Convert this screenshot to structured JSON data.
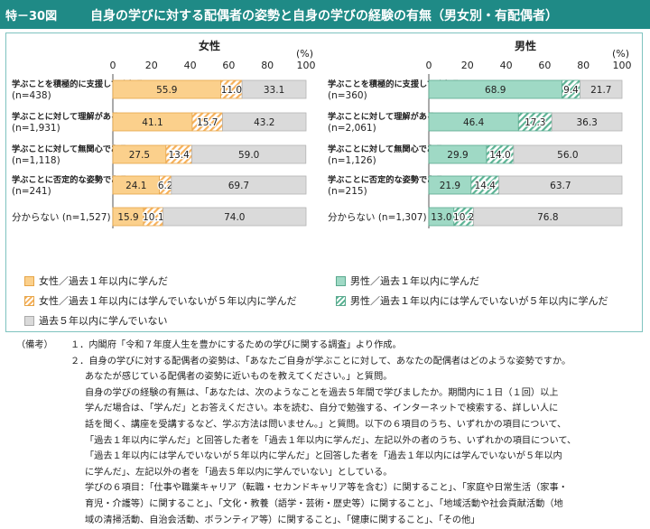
{
  "header": {
    "figure_label": "特－30図",
    "title": "自身の学びに対する配偶者の姿勢と自身の学びの経験の有無（男女別・有配偶者）"
  },
  "chart_data": [
    {
      "type": "bar",
      "orientation": "horizontal",
      "stacked": true,
      "title": "女性",
      "unit_label": "(%)",
      "xlim": [
        0,
        100
      ],
      "ticks": [
        "0",
        "20",
        "40",
        "60",
        "80",
        "100"
      ],
      "categories": [
        [
          "学ぶことを積極的に支援してくれる",
          "(n=438)"
        ],
        [
          "学ぶことに対して理解がある",
          "(n=1,931)"
        ],
        [
          "学ぶことに対して無関心である",
          "(n=1,118)"
        ],
        [
          "学ぶことに否定的な姿勢である",
          "(n=241)"
        ],
        [
          "分からない (n=1,527)"
        ]
      ],
      "series": [
        {
          "name": "女性／過去１年以内に学んだ",
          "values": [
            55.9,
            41.1,
            27.5,
            24.1,
            15.9
          ],
          "color": "#fbd08c",
          "pattern": "solid"
        },
        {
          "name": "女性／過去１年以内には学んでいないが５年以内に学んだ",
          "values": [
            11.0,
            15.7,
            13.4,
            6.2,
            10.1
          ],
          "color": "#f6b15b",
          "pattern": "hatch"
        },
        {
          "name": "過去５年以内に学んでいない",
          "values": [
            33.1,
            43.2,
            59.0,
            69.7,
            74.0
          ],
          "color": "#dadada",
          "pattern": "solid"
        }
      ]
    },
    {
      "type": "bar",
      "orientation": "horizontal",
      "stacked": true,
      "title": "男性",
      "unit_label": "(%)",
      "xlim": [
        0,
        100
      ],
      "ticks": [
        "0",
        "20",
        "40",
        "60",
        "80",
        "100"
      ],
      "categories": [
        [
          "学ぶことを積極的に支援してくれる",
          "(n=360)"
        ],
        [
          "学ぶことに対して理解がある",
          "(n=2,061)"
        ],
        [
          "学ぶことに対して無関心である",
          "(n=1,126)"
        ],
        [
          "学ぶことに否定的な姿勢である",
          "(n=215)"
        ],
        [
          "分からない (n=1,307)"
        ]
      ],
      "series": [
        {
          "name": "男性／過去１年以内に学んだ",
          "values": [
            68.9,
            46.4,
            29.9,
            21.9,
            13.0
          ],
          "color": "#9fd9c5",
          "pattern": "solid"
        },
        {
          "name": "男性／過去１年以内には学んでいないが５年以内に学んだ",
          "values": [
            9.4,
            17.3,
            14.0,
            14.4,
            10.2
          ],
          "color": "#5cb394",
          "pattern": "hatch"
        },
        {
          "name": "過去５年以内に学んでいない",
          "values": [
            21.7,
            36.3,
            56.0,
            63.7,
            76.8
          ],
          "color": "#dadada",
          "pattern": "solid"
        }
      ]
    }
  ],
  "legend": {
    "female_learned_1yr": "女性／過去１年以内に学んだ",
    "male_learned_1yr": "男性／過去１年以内に学んだ",
    "female_learned_5yr": "女性／過去１年以内には学んでいないが５年以内に学んだ",
    "male_learned_5yr": "男性／過去１年以内には学んでいないが５年以内に学んだ",
    "not_learned": "過去５年以内に学んでいない"
  },
  "notes": {
    "heading": "（備考）",
    "lines": [
      "１．内閣府「令和７年度人生を豊かにするための学びに関する調査」より作成。",
      "２．自身の学びに対する配偶者の姿勢は、「あなたご自身が学ぶことに対して、あなたの配偶者はどのような姿勢ですか。",
      "あなたが感じている配偶者の姿勢に近いものを教えてください。」と質問。",
      "自身の学びの経験の有無は、「あなたは、次のようなことを過去５年間で学びましたか。期間内に１日（１回）以上",
      "学んだ場合は、「学んだ」とお答えください。本を読む、自分で勉強する、インターネットで検索する、詳しい人に",
      "話を聞く、講座を受講するなど、学ぶ方法は問いません。」と質問。以下の６項目のうち、いずれかの項目について、",
      "「過去１年以内に学んだ」と回答した者を「過去１年以内に学んだ」、左記以外の者のうち、いずれかの項目について、",
      "「過去１年以内には学んでいないが５年以内に学んだ」と回答した者を「過去１年以内には学んでいないが５年以内",
      "に学んだ」、左記以外の者を「過去５年以内に学んでいない」としている。",
      "学びの６項目：「仕事や職業キャリア（転職・セカンドキャリア等を含む）に関すること」、「家庭や日常生活（家事・",
      "育児・介護等）に関すること」、「文化・教養（語学・芸術・歴史等）に関すること」、「地域活動や社会貢献活動（地",
      "域の清掃活動、自治会活動、ボランティア等）に関すること」、「健康に関すること」、「その他」"
    ]
  }
}
